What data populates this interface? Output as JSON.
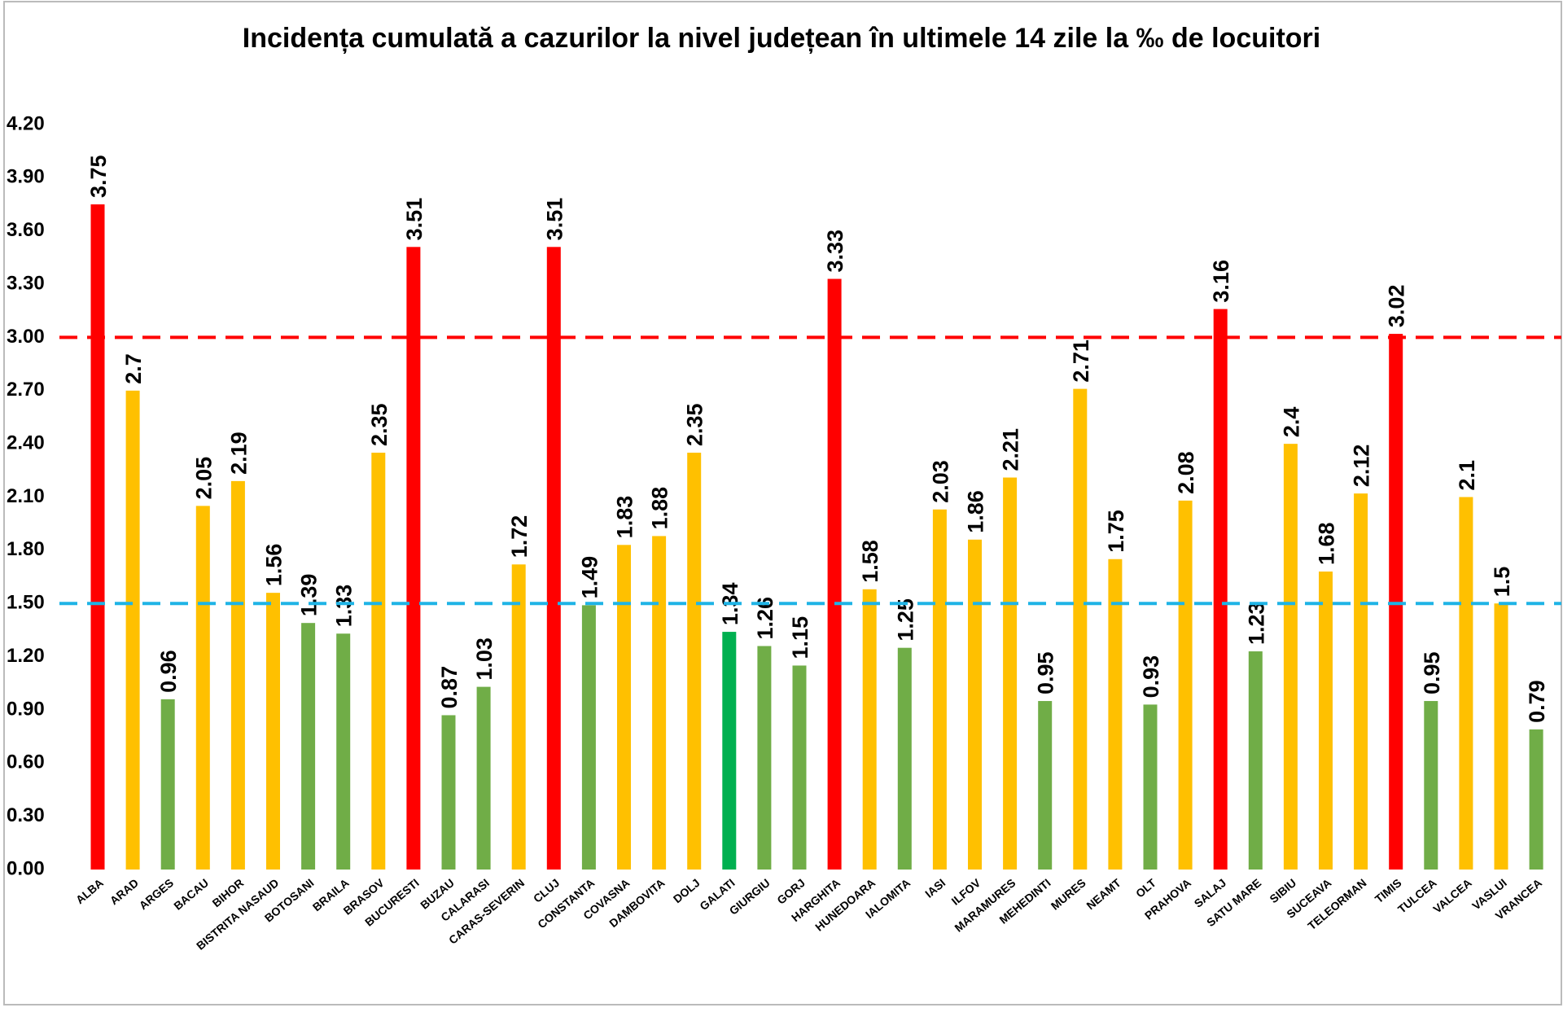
{
  "chart_data": {
    "type": "bar",
    "title": "Incidența cumulată a cazurilor la nivel județean în ultimele 14 zile la ‰ de locuitori",
    "categories": [
      "ALBA",
      "ARAD",
      "ARGES",
      "BACAU",
      "BIHOR",
      "BISTRITA NASAUD",
      "BOTOSANI",
      "BRAILA",
      "BRASOV",
      "BUCURESTI",
      "BUZAU",
      "CALARASI",
      "CARAS-SEVERIN",
      "CLUJ",
      "CONSTANTA",
      "COVASNA",
      "DAMBOVITA",
      "DOLJ",
      "GALATI",
      "GIURGIU",
      "GORJ",
      "HARGHITA",
      "HUNEDOARA",
      "IALOMITA",
      "IASI",
      "ILFOV",
      "MARAMURES",
      "MEHEDINTI",
      "MURES",
      "NEAMT",
      "OLT",
      "PRAHOVA",
      "SALAJ",
      "SATU MARE",
      "SIBIU",
      "SUCEAVA",
      "TELEORMAN",
      "TIMIS",
      "TULCEA",
      "VALCEA",
      "VASLUI",
      "VRANCEA"
    ],
    "values": [
      3.75,
      2.7,
      0.96,
      2.05,
      2.19,
      1.56,
      1.39,
      1.33,
      2.35,
      3.51,
      0.87,
      1.03,
      1.72,
      3.51,
      1.49,
      1.83,
      1.88,
      2.35,
      1.34,
      1.26,
      1.15,
      3.33,
      1.58,
      1.25,
      2.03,
      1.86,
      2.21,
      0.95,
      2.71,
      1.75,
      0.93,
      2.08,
      3.16,
      1.23,
      2.4,
      1.68,
      2.12,
      3.02,
      0.95,
      2.1,
      1.5,
      0.79
    ],
    "colors": [
      "#ff0000",
      "#ffc000",
      "#70ad47",
      "#ffc000",
      "#ffc000",
      "#ffc000",
      "#70ad47",
      "#70ad47",
      "#ffc000",
      "#ff0000",
      "#70ad47",
      "#70ad47",
      "#ffc000",
      "#ff0000",
      "#70ad47",
      "#ffc000",
      "#ffc000",
      "#ffc000",
      "#00b050",
      "#70ad47",
      "#70ad47",
      "#ff0000",
      "#ffc000",
      "#70ad47",
      "#ffc000",
      "#ffc000",
      "#ffc000",
      "#70ad47",
      "#ffc000",
      "#ffc000",
      "#70ad47",
      "#ffc000",
      "#ff0000",
      "#70ad47",
      "#ffc000",
      "#ffc000",
      "#ffc000",
      "#ff0000",
      "#70ad47",
      "#ffc000",
      "#ffc000",
      "#70ad47"
    ],
    "ylim": [
      0,
      4.2
    ],
    "yticks": [
      {
        "value": 0,
        "label": "0.00"
      },
      {
        "value": 0.3,
        "label": "0.30"
      },
      {
        "value": 0.6,
        "label": "0.60"
      },
      {
        "value": 0.9,
        "label": "0.90"
      },
      {
        "value": 1.2,
        "label": "1.20"
      },
      {
        "value": 1.5,
        "label": "1.50"
      },
      {
        "value": 1.8,
        "label": "1.80"
      },
      {
        "value": 2.1,
        "label": "2.10"
      },
      {
        "value": 2.4,
        "label": "2.40"
      },
      {
        "value": 2.7,
        "label": "2.70"
      },
      {
        "value": 3,
        "label": "3.00"
      },
      {
        "value": 3.3,
        "label": "3.30"
      },
      {
        "value": 3.6,
        "label": "3.60"
      },
      {
        "value": 3.9,
        "label": "3.90"
      },
      {
        "value": 4.2,
        "label": "4.20"
      }
    ],
    "reference_lines": [
      {
        "value": 3,
        "color": "#ff0000"
      },
      {
        "value": 1.5,
        "color": "#1fb4e6"
      }
    ],
    "grid": false
  }
}
